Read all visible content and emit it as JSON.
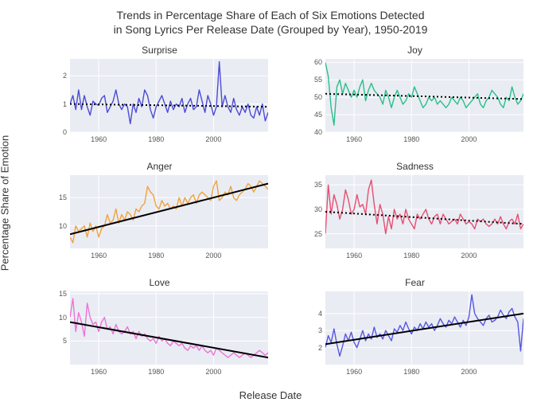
{
  "title_line1": "Trends in Percentage Share of Each of Six Emotions Detected",
  "title_line2": "in Song Lyrics Per Release Date (Grouped by Year), 1950-2019",
  "y_axis_label": "Percentage Share of Emotion",
  "x_axis_label": "Release Date",
  "global": {
    "background_color": "#ffffff",
    "panel_bg": "#e9ecf3",
    "grid_color": "#ffffff",
    "grid_width": 1,
    "title_fontsize": 14,
    "axis_label_fontsize": 13,
    "panel_title_fontsize": 12,
    "tick_fontsize": 9,
    "x_start": 1950,
    "x_end": 2019,
    "xticks": [
      1960,
      1980,
      2000
    ],
    "line_width": 1.4,
    "trend_line_width": 2
  },
  "panels": [
    {
      "title": "Surprise",
      "color": "#4b4bd6",
      "trend_color": "#000000",
      "trend_style": "dotted",
      "ylim": [
        0,
        2.6
      ],
      "yticks": [
        0,
        1,
        2
      ],
      "trend": [
        1.0,
        0.9
      ],
      "data": [
        1.0,
        1.3,
        0.8,
        1.5,
        0.8,
        1.3,
        0.9,
        0.6,
        1.1,
        1.0,
        0.95,
        1.2,
        1.3,
        0.7,
        0.9,
        1.1,
        1.5,
        1.0,
        0.8,
        1.0,
        0.9,
        0.3,
        1.0,
        0.7,
        1.2,
        0.9,
        1.5,
        1.3,
        0.8,
        0.5,
        0.9,
        1.1,
        1.3,
        1.0,
        0.7,
        1.1,
        0.8,
        1.0,
        0.9,
        1.2,
        0.7,
        1.0,
        1.2,
        0.8,
        0.9,
        1.5,
        1.1,
        0.7,
        1.3,
        1.0,
        0.6,
        0.9,
        2.5,
        0.9,
        1.3,
        0.9,
        0.7,
        1.2,
        0.8,
        0.6,
        0.9,
        0.7,
        1.0,
        0.6,
        0.5,
        0.9,
        0.6,
        1.0,
        0.4,
        0.7
      ]
    },
    {
      "title": "Joy",
      "color": "#2bbf89",
      "trend_color": "#000000",
      "trend_style": "dotted",
      "ylim": [
        40,
        61
      ],
      "yticks": [
        40,
        45,
        50,
        55,
        60
      ],
      "trend": [
        51,
        49.5
      ],
      "data": [
        60,
        56,
        47,
        42,
        53,
        55,
        51,
        54,
        52,
        50,
        52,
        50,
        53,
        55,
        49,
        52,
        54,
        52,
        51,
        50,
        48,
        52,
        50,
        47,
        50,
        52,
        50,
        48,
        49,
        51,
        50,
        53,
        51,
        49,
        47,
        48,
        50,
        49,
        50,
        48,
        49,
        48,
        47,
        48,
        50,
        49,
        48,
        50,
        49,
        47,
        48,
        49,
        50,
        51,
        48,
        47,
        49,
        50,
        52,
        51,
        50,
        48,
        47,
        50,
        49,
        53,
        50,
        48,
        49,
        51
      ]
    },
    {
      "title": "Anger",
      "color": "#f2a23c",
      "trend_color": "#000000",
      "trend_style": "solid",
      "ylim": [
        6,
        19
      ],
      "yticks": [
        10,
        15
      ],
      "trend": [
        8.5,
        17.5
      ],
      "data": [
        8,
        7,
        10,
        9,
        9.5,
        10,
        8,
        10.5,
        9,
        10,
        8,
        9.5,
        10,
        12,
        10.5,
        11,
        13,
        10.5,
        12,
        11,
        12.5,
        12,
        11,
        13,
        12.5,
        13.5,
        14,
        17,
        16,
        15.5,
        13.5,
        13,
        14.5,
        13.5,
        14,
        13,
        13.5,
        13,
        15,
        13.5,
        15,
        14,
        15,
        15.5,
        14,
        15.5,
        16,
        15.5,
        15,
        14.5,
        17,
        18,
        14.5,
        15,
        16,
        15.5,
        17,
        15,
        14.5,
        15.5,
        16,
        16.5,
        17.5,
        17,
        16,
        17,
        18,
        17.5,
        17,
        16.5
      ]
    },
    {
      "title": "Sadness",
      "color": "#e94d72",
      "trend_color": "#000000",
      "trend_style": "dotted",
      "ylim": [
        22,
        37
      ],
      "yticks": [
        25,
        30,
        35
      ],
      "trend": [
        29.5,
        27
      ],
      "data": [
        25,
        35,
        29,
        33,
        31,
        28,
        30,
        34,
        32,
        29,
        30,
        33,
        30.5,
        31,
        29,
        34,
        36,
        31,
        27,
        31,
        29,
        25,
        28.5,
        26,
        30,
        28,
        29,
        27,
        30,
        28,
        27,
        26,
        29,
        28,
        29,
        30,
        28,
        27,
        28.5,
        29,
        27,
        29,
        28,
        27,
        27.5,
        28,
        27,
        29,
        28,
        27,
        27.5,
        27,
        26,
        28,
        27.5,
        28,
        27,
        26.5,
        27,
        28,
        27,
        28.5,
        27,
        26,
        27.5,
        28,
        27,
        29,
        26,
        27
      ]
    },
    {
      "title": "Love",
      "color": "#ed73d8",
      "trend_color": "#000000",
      "trend_style": "solid",
      "ylim": [
        0,
        15.5
      ],
      "yticks": [
        5,
        10,
        15
      ],
      "trend": [
        9,
        1.5
      ],
      "data": [
        10,
        14,
        7,
        11,
        9,
        6,
        13,
        10,
        8.5,
        9,
        7,
        9,
        10,
        7.5,
        8,
        6.5,
        8.5,
        7,
        6.5,
        7,
        8,
        6.5,
        7,
        5.5,
        7,
        6,
        6.5,
        5.5,
        5,
        5.5,
        4.5,
        6,
        5,
        5.5,
        4.5,
        4,
        5,
        4.5,
        4,
        4.5,
        3.5,
        3,
        4,
        3.5,
        4,
        3,
        4,
        3,
        2.5,
        3,
        2,
        3.5,
        3,
        2.5,
        2,
        1.5,
        2,
        2.5,
        2,
        1.5,
        2,
        2.5,
        2,
        1.5,
        2,
        2.5,
        3,
        2.5,
        2,
        2.5
      ]
    },
    {
      "title": "Fear",
      "color": "#5757e0",
      "trend_color": "#000000",
      "trend_style": "solid",
      "ylim": [
        1,
        5.3
      ],
      "yticks": [
        2,
        3,
        4
      ],
      "trend": [
        2.2,
        4.0
      ],
      "data": [
        2.0,
        2.7,
        2.3,
        3.1,
        2.2,
        1.5,
        2.1,
        2.8,
        2.4,
        2.9,
        2.3,
        2.0,
        2.5,
        3.0,
        2.4,
        2.8,
        2.5,
        3.2,
        2.6,
        2.8,
        2.5,
        3.0,
        2.7,
        2.4,
        3.1,
        2.9,
        3.3,
        3.0,
        3.5,
        3.1,
        2.8,
        3.2,
        3.0,
        3.4,
        3.1,
        3.5,
        3.2,
        3.4,
        3.0,
        3.3,
        3.7,
        3.4,
        3.2,
        3.6,
        3.4,
        3.8,
        3.5,
        3.2,
        3.6,
        3.3,
        3.8,
        5.1,
        4.0,
        3.7,
        3.5,
        3.3,
        3.7,
        3.9,
        3.5,
        3.6,
        3.8,
        4.2,
        3.9,
        3.7,
        4.1,
        4.3,
        3.8,
        3.5,
        1.8,
        3.7
      ]
    }
  ]
}
